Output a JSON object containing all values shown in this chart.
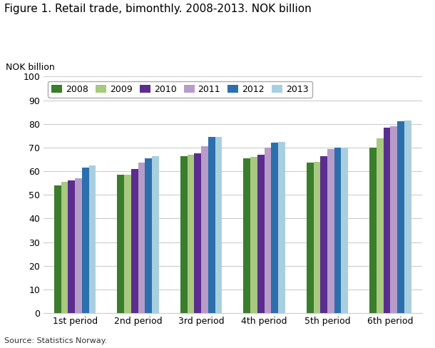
{
  "title": "Figure 1. Retail trade, bimonthly. 2008-2013. NOK billion",
  "ylabel": "NOK billion",
  "source": "Source: Statistics Norway.",
  "periods": [
    "1st period",
    "2nd period",
    "3rd period",
    "4th period",
    "5th period",
    "6th period"
  ],
  "years": [
    "2008",
    "2009",
    "2010",
    "2011",
    "2012",
    "2013"
  ],
  "values": {
    "2008": [
      54.0,
      58.5,
      66.5,
      65.5,
      63.5,
      70.0
    ],
    "2009": [
      55.5,
      58.5,
      67.0,
      66.0,
      64.0,
      74.0
    ],
    "2010": [
      56.0,
      61.0,
      67.5,
      67.0,
      66.5,
      78.5
    ],
    "2011": [
      57.0,
      63.5,
      70.5,
      70.0,
      69.5,
      79.0
    ],
    "2012": [
      61.5,
      65.5,
      74.5,
      72.0,
      70.0,
      81.0
    ],
    "2013": [
      62.5,
      66.5,
      74.5,
      72.5,
      70.0,
      81.5
    ]
  },
  "colors": {
    "2008": "#3a7d2c",
    "2009": "#a8c97f",
    "2010": "#5b2d8e",
    "2011": "#b89cc8",
    "2012": "#2c6fad",
    "2013": "#a8cfe0"
  },
  "ylim": [
    0,
    100
  ],
  "yticks": [
    0,
    10,
    20,
    30,
    40,
    50,
    60,
    70,
    80,
    90,
    100
  ],
  "bar_width": 0.11,
  "background_color": "#ffffff",
  "grid_color": "#cccccc",
  "title_fontsize": 11,
  "axis_fontsize": 9,
  "tick_fontsize": 9,
  "legend_fontsize": 9,
  "source_fontsize": 8
}
